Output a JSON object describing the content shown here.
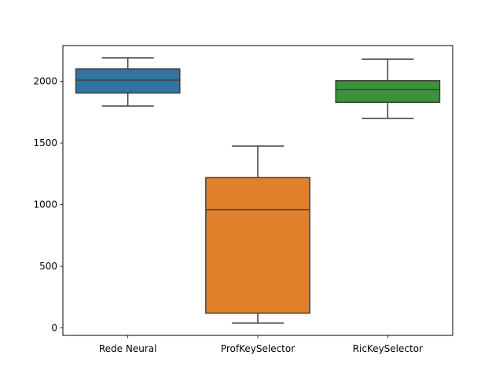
{
  "chart_data": {
    "type": "box",
    "title": "",
    "xlabel": "",
    "ylabel": "",
    "categories": [
      "Rede Neural",
      "ProfKeySelector",
      "RicKeySelector"
    ],
    "boxes": [
      {
        "category": "Rede Neural",
        "whisker_low": 1800,
        "q1": 1905,
        "median": 2010,
        "q3": 2100,
        "whisker_high": 2190,
        "color": "#3274a1"
      },
      {
        "category": "ProfKeySelector",
        "whisker_low": 40,
        "q1": 120,
        "median": 960,
        "q3": 1220,
        "whisker_high": 1475,
        "color": "#e1812c"
      },
      {
        "category": "RicKeySelector",
        "whisker_low": 1700,
        "q1": 1830,
        "median": 1935,
        "q3": 2005,
        "whisker_high": 2180,
        "color": "#3a923a"
      }
    ],
    "ylim": [
      -60,
      2290
    ],
    "yticks": [
      0,
      500,
      1000,
      1500,
      2000
    ],
    "ytick_labels": [
      "0",
      "500",
      "1000",
      "1500",
      "2000"
    ],
    "grid": false,
    "legend": "none"
  }
}
